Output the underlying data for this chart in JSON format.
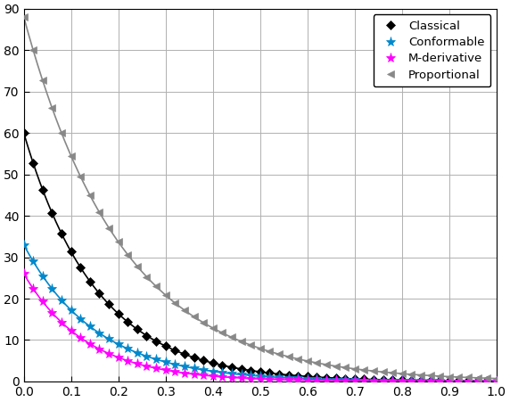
{
  "title": "",
  "xlim": [
    0,
    1
  ],
  "ylim": [
    0,
    90
  ],
  "xticks": [
    0,
    0.1,
    0.2,
    0.3,
    0.4,
    0.5,
    0.6,
    0.7,
    0.8,
    0.9,
    1.0
  ],
  "yticks": [
    0,
    10,
    20,
    30,
    40,
    50,
    60,
    70,
    80,
    90
  ],
  "grid": true,
  "curves": {
    "Classical": {
      "color": "#000000",
      "marker": "D",
      "markersize": 5,
      "linewidth": 1.2,
      "C": 60,
      "k": 6.5
    },
    "Conformable": {
      "color": "#0088CC",
      "marker": "*",
      "markersize": 8,
      "linewidth": 1.2,
      "C": 33,
      "k": 6.5
    },
    "M-derivative": {
      "color": "#FF00FF",
      "marker": "*",
      "markersize": 8,
      "linewidth": 1.2,
      "C": 26,
      "k": 7.5
    },
    "Proportional": {
      "color": "#888888",
      "marker": "<",
      "markersize": 6,
      "linewidth": 1.2,
      "C": 88,
      "k": 4.8
    }
  },
  "legend_order": [
    "Classical",
    "Conformable",
    "M-derivative",
    "Proportional"
  ],
  "legend_loc": "upper right",
  "n_points": 51,
  "background_color": "#ffffff",
  "figsize": [
    5.72,
    4.51
  ],
  "dpi": 100
}
